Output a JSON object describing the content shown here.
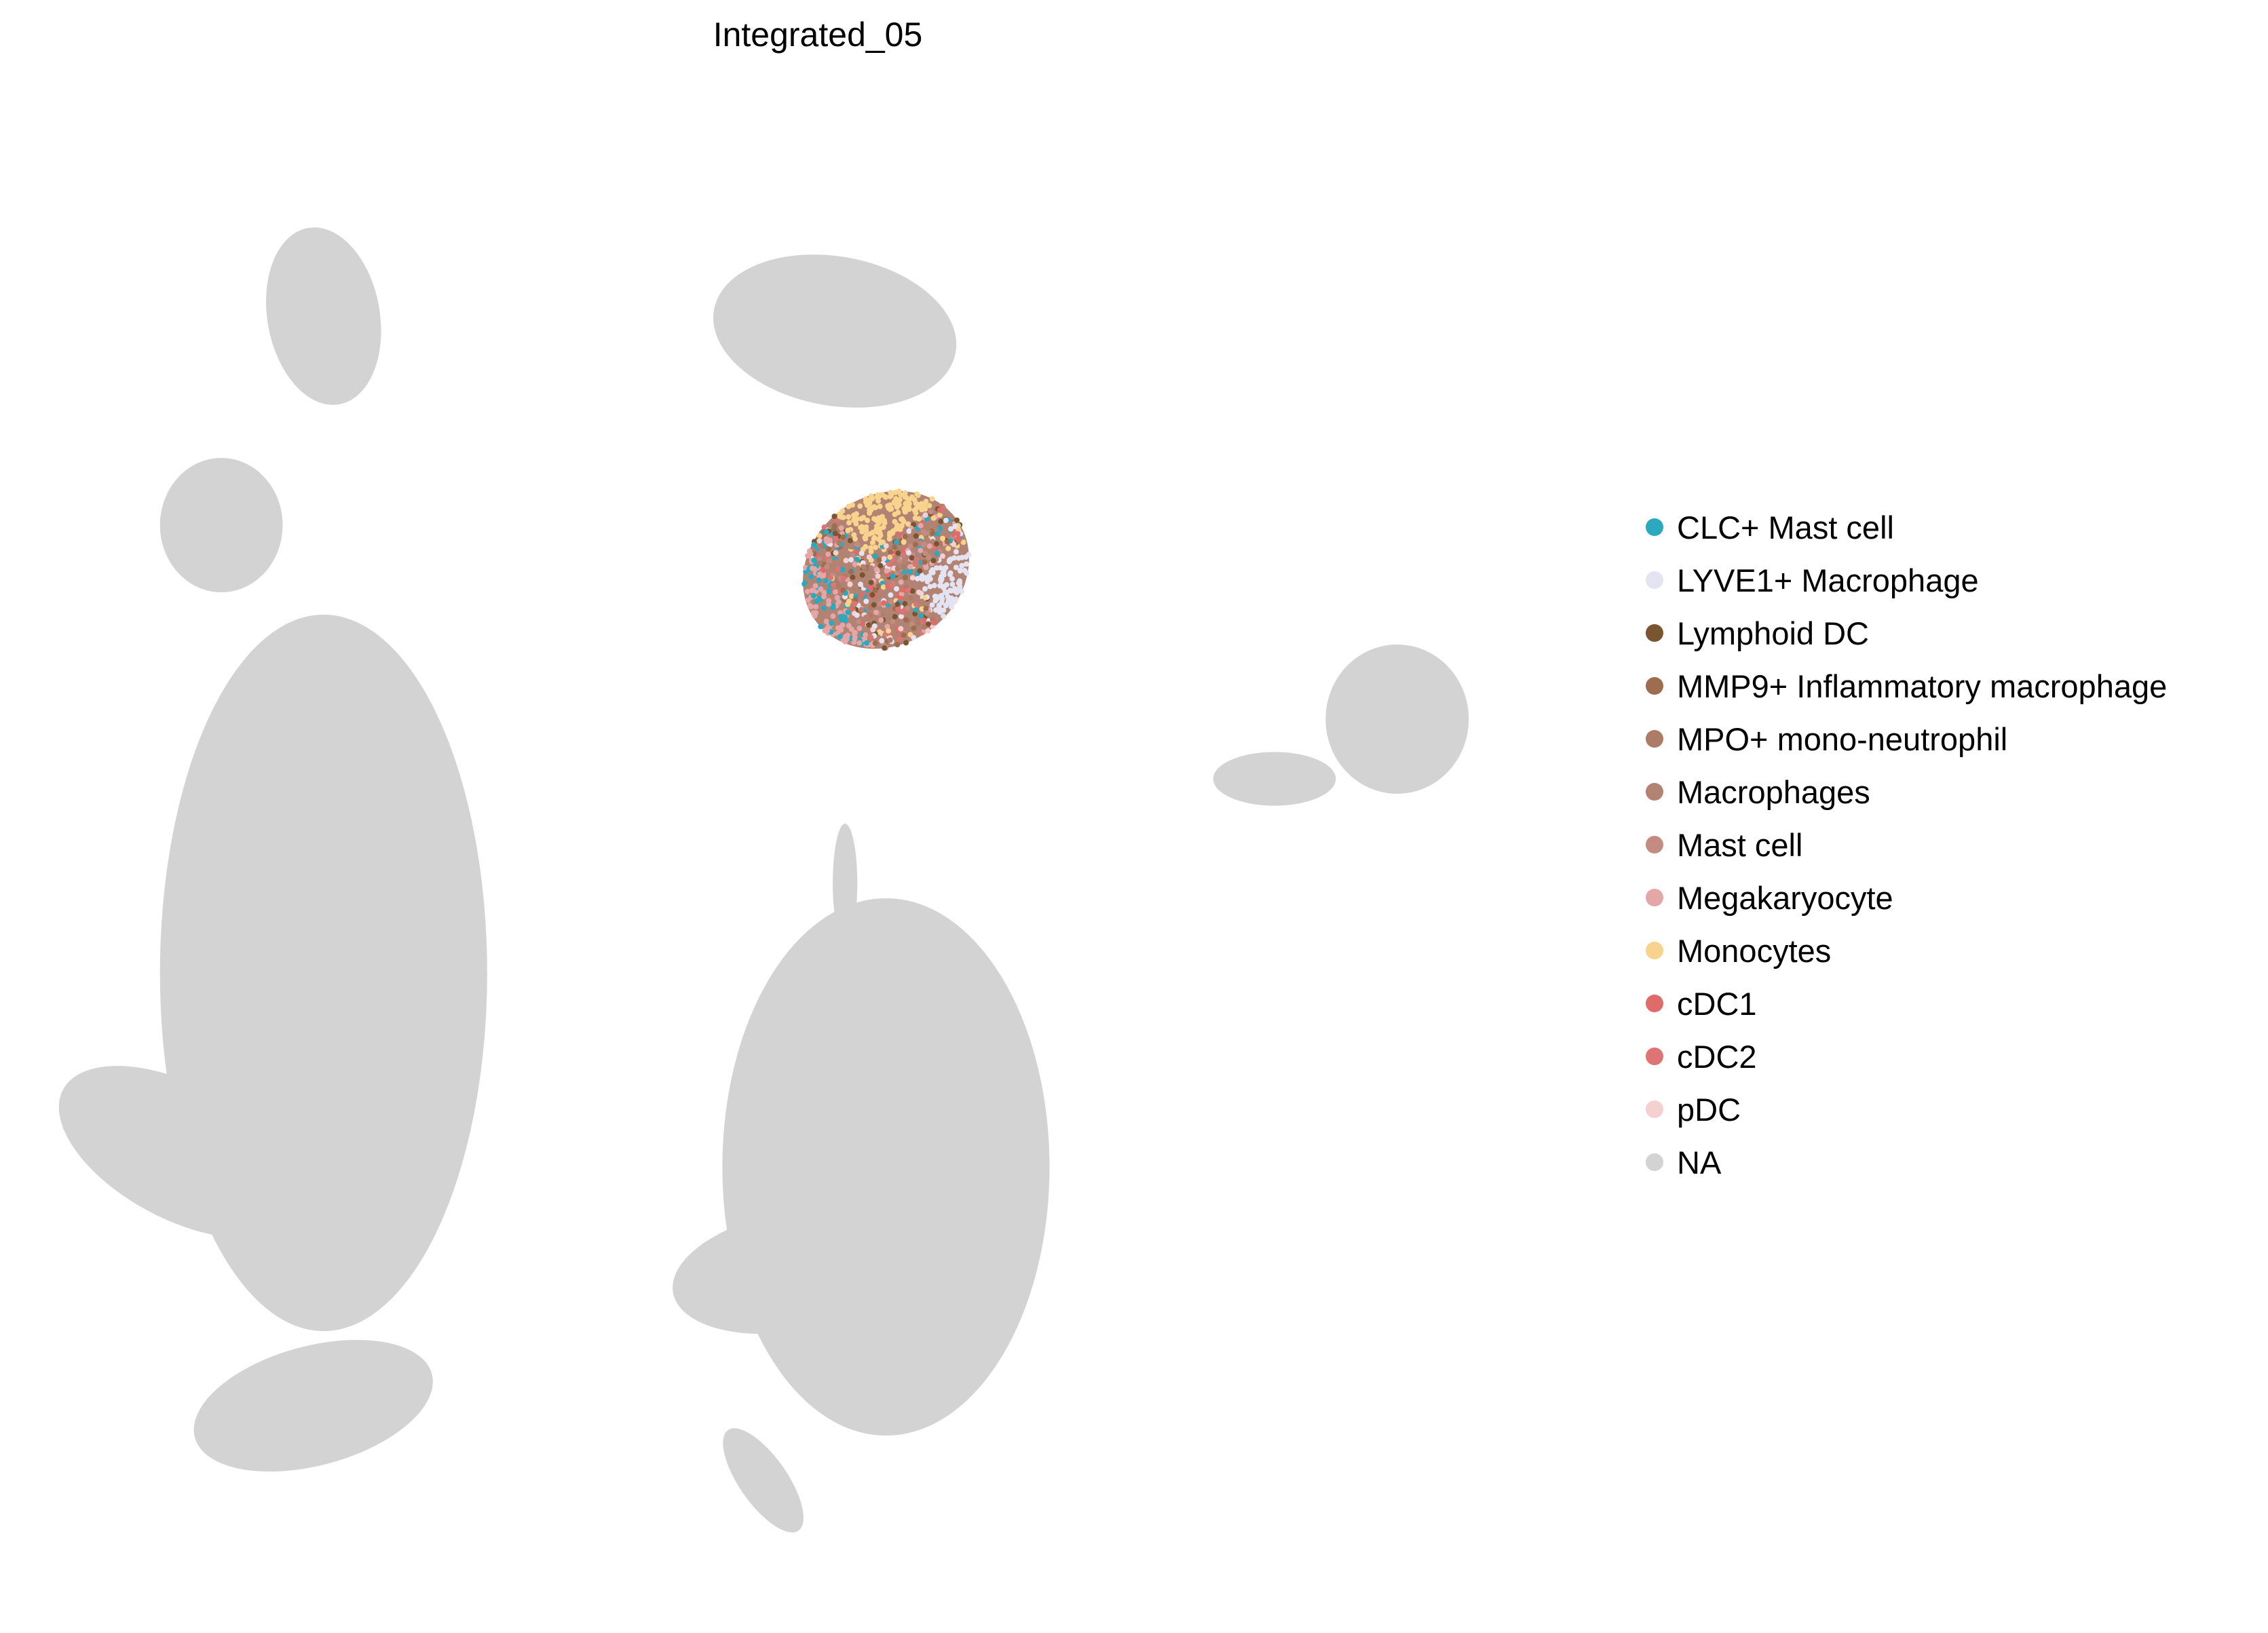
{
  "chart_data": {
    "type": "scatter",
    "title": "Integrated_05",
    "xlabel": "",
    "ylabel": "",
    "axes_visible": false,
    "grid": false,
    "legend_position": "right",
    "background_category": "NA",
    "categories": [
      {
        "name": "CLC+ Mast cell",
        "color": "#2aa9bf"
      },
      {
        "name": "LYVE1+ Macrophage",
        "color": "#e4e3f1"
      },
      {
        "name": "Lymphoid DC",
        "color": "#7a5532"
      },
      {
        "name": "MMP9+ Inflammatory macrophage",
        "color": "#9e6c4f"
      },
      {
        "name": "MPO+ mono-neutrophil",
        "color": "#ad7c66"
      },
      {
        "name": "Macrophages",
        "color": "#b28272"
      },
      {
        "name": "Mast cell",
        "color": "#c38b81"
      },
      {
        "name": "Megakaryocyte",
        "color": "#e4a6a6"
      },
      {
        "name": "Monocytes",
        "color": "#f8d38e"
      },
      {
        "name": "cDC1",
        "color": "#e06b6b"
      },
      {
        "name": "cDC2",
        "color": "#de7474"
      },
      {
        "name": "pDC",
        "color": "#f5d0d0"
      },
      {
        "name": "NA",
        "color": "#d3d3d3"
      }
    ],
    "background_clusters": [
      {
        "name": "top-left-cluster",
        "cx": 0.27,
        "cy": 0.87,
        "rx": 0.055,
        "ry": 0.06,
        "rot": -10
      },
      {
        "name": "left-small-cluster",
        "cx": 0.17,
        "cy": 0.73,
        "rx": 0.06,
        "ry": 0.045,
        "rot": 0
      },
      {
        "name": "top-center-cluster",
        "cx": 0.77,
        "cy": 0.86,
        "rx": 0.12,
        "ry": 0.05,
        "rot": 10
      },
      {
        "name": "large-left-cluster",
        "cx": 0.27,
        "cy": 0.43,
        "rx": 0.16,
        "ry": 0.24,
        "rot": 0
      },
      {
        "name": "left-arm-cluster",
        "cx": 0.13,
        "cy": 0.31,
        "rx": 0.13,
        "ry": 0.045,
        "rot": 28
      },
      {
        "name": "center-lower-cluster",
        "cx": 0.82,
        "cy": 0.3,
        "rx": 0.16,
        "ry": 0.18,
        "rot": 0
      },
      {
        "name": "center-lower-arm",
        "cx": 0.73,
        "cy": 0.23,
        "rx": 0.12,
        "ry": 0.04,
        "rot": -10
      },
      {
        "name": "right-cluster",
        "cx": 1.32,
        "cy": 0.6,
        "rx": 0.07,
        "ry": 0.05,
        "rot": 0
      },
      {
        "name": "right-cluster-arm",
        "cx": 1.2,
        "cy": 0.56,
        "rx": 0.06,
        "ry": 0.018,
        "rot": 0
      },
      {
        "name": "bottom-left-cluster",
        "cx": 0.26,
        "cy": 0.14,
        "rx": 0.12,
        "ry": 0.04,
        "rot": -15
      },
      {
        "name": "bottom-center-cluster",
        "cx": 0.7,
        "cy": 0.09,
        "rx": 0.06,
        "ry": 0.016,
        "rot": 55
      },
      {
        "name": "small-center-cluster",
        "cx": 0.78,
        "cy": 0.49,
        "rx": 0.012,
        "ry": 0.04,
        "rot": 0
      }
    ],
    "highlight_cluster": {
      "cx": 0.82,
      "cy": 0.7,
      "rx": 0.085,
      "ry": 0.05,
      "rot": -35
    },
    "x_range": [
      0,
      1.5
    ],
    "y_range": [
      0,
      1
    ]
  }
}
